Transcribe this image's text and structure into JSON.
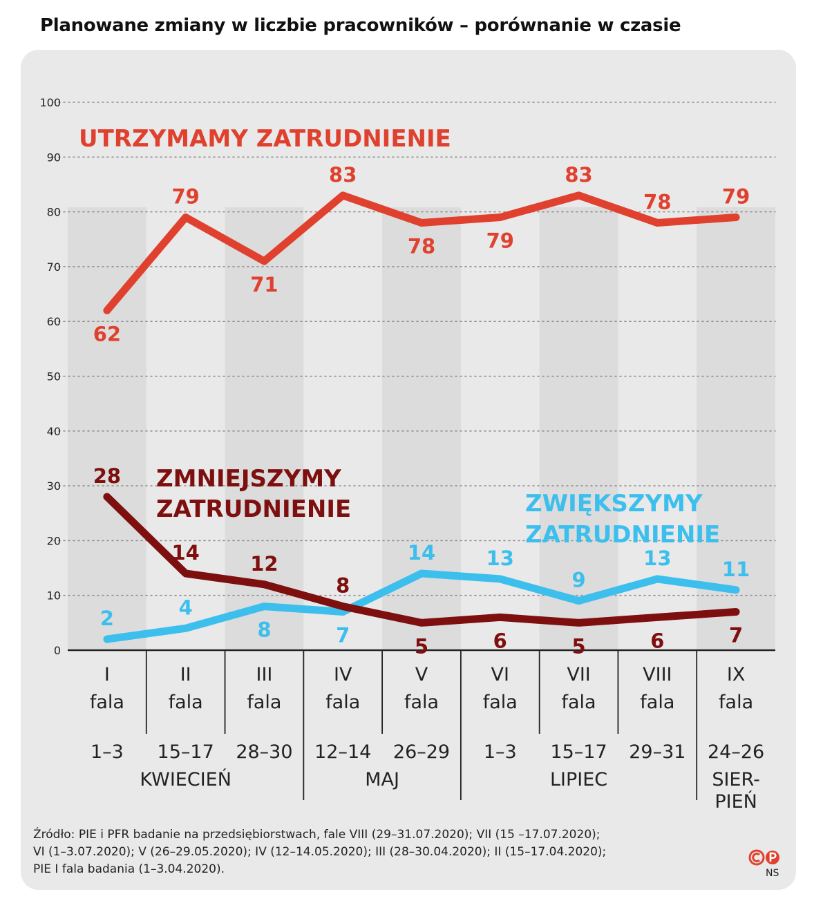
{
  "title": "Planowane zmiany w liczbie pracowników – porównanie w czasie",
  "source_lines": [
    "Źródło: PIE i PFR badanie na przedsiębiorstwach, fale VIII (29–31.07.2020); VII (15 –17.07.2020);",
    "VI (1–3.07.2020); V (26–29.05.2020); IV (12–14.05.2020); III (28–30.04.2020); II (15–17.04.2020);",
    "PIE I fala badania (1–3.04.2020)."
  ],
  "credit": "NS",
  "colors": {
    "utrzymamy": "#e0412f",
    "zmniejszymy": "#7d0f0f",
    "zwiekszymy": "#3dbfee",
    "background": "#e9e9e9",
    "stripe": "#dcdcdc"
  },
  "chart_data": {
    "type": "line",
    "title": "Planowane zmiany w liczbie pracowników – porównanie w czasie",
    "ylim": [
      0,
      100
    ],
    "yticks": [
      0,
      10,
      20,
      30,
      40,
      50,
      60,
      70,
      80,
      90,
      100
    ],
    "grid": true,
    "categories": [
      {
        "wave": "I",
        "fala": "fala",
        "days": "1–3"
      },
      {
        "wave": "II",
        "fala": "fala",
        "days": "15–17"
      },
      {
        "wave": "III",
        "fala": "fala",
        "days": "28–30"
      },
      {
        "wave": "IV",
        "fala": "fala",
        "days": "12–14"
      },
      {
        "wave": "V",
        "fala": "fala",
        "days": "26–29"
      },
      {
        "wave": "VI",
        "fala": "fala",
        "days": "1–3"
      },
      {
        "wave": "VII",
        "fala": "fala",
        "days": "15–17"
      },
      {
        "wave": "VIII",
        "fala": "fala",
        "days": "29–31"
      },
      {
        "wave": "IX",
        "fala": "fala",
        "days": "24–26"
      }
    ],
    "months": [
      {
        "label": "KWIECIEŃ",
        "start": 0,
        "end": 2
      },
      {
        "label": "MAJ",
        "start": 3,
        "end": 4
      },
      {
        "label": "LIPIEC",
        "start": 5,
        "end": 7
      },
      {
        "label": "SIER-|PIEŃ",
        "start": 8,
        "end": 8
      }
    ],
    "series": [
      {
        "key": "utrzymamy",
        "name": "UTRZYMAMY ZATRUDNIENIE",
        "values": [
          62,
          79,
          71,
          83,
          78,
          79,
          83,
          78,
          79
        ]
      },
      {
        "key": "zmniejszymy",
        "name": "ZMNIEJSZYMY|ZATRUDNIENIE",
        "values": [
          28,
          14,
          12,
          8,
          5,
          6,
          5,
          6,
          7
        ]
      },
      {
        "key": "zwiekszymy",
        "name": "ZWIĘKSZYMY|ZATRUDNIENIE",
        "values": [
          2,
          4,
          8,
          7,
          14,
          13,
          9,
          13,
          11
        ]
      }
    ]
  }
}
